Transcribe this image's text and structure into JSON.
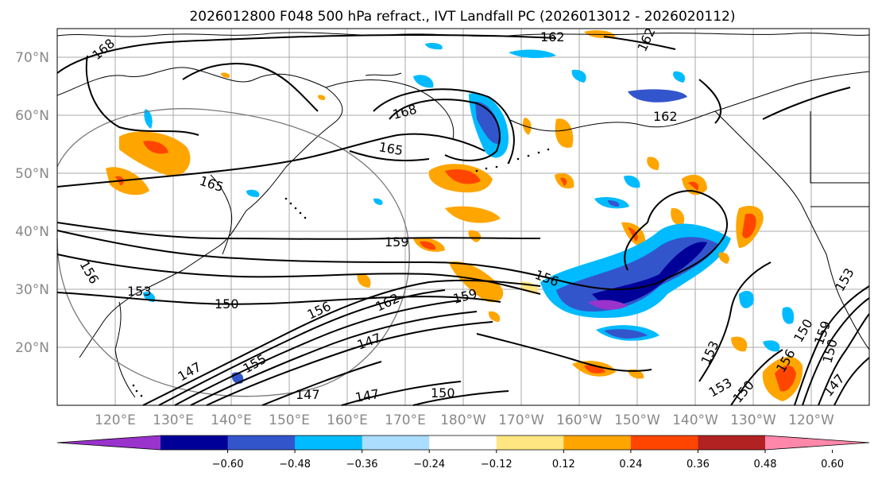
{
  "title": "2026012800 F048 500 hPa refract., IVT Landfall PC (2026013012 - 2026020112)",
  "map": {
    "lat_labels": [
      "70°N",
      "60°N",
      "50°N",
      "40°N",
      "30°N",
      "20°N"
    ],
    "lon_labels": [
      "120°E",
      "130°E",
      "140°E",
      "150°E",
      "160°E",
      "170°E",
      "180°W",
      "170°W",
      "160°W",
      "150°W",
      "140°W",
      "130°W",
      "120°W"
    ],
    "contour_labels": [
      "168",
      "162",
      "162",
      "168",
      "165",
      "165",
      "162",
      "159",
      "156",
      "156",
      "159",
      "153",
      "150",
      "156",
      "162",
      "147",
      "147",
      "155",
      "147",
      "147",
      "150",
      "153",
      "153",
      "150",
      "150",
      "156",
      "153",
      "159",
      "147",
      "150"
    ]
  },
  "colorbar": {
    "colors": [
      "#9933cc",
      "#000099",
      "#3355cc",
      "#00bbff",
      "#aaddff",
      "#ffffff",
      "#ffe680",
      "#ffa500",
      "#ff4500",
      "#b22222",
      "#ff88aa"
    ],
    "tick_labels": [
      "−0.60",
      "−0.48",
      "−0.36",
      "−0.24",
      "−0.12",
      "0.12",
      "0.24",
      "0.36",
      "0.48",
      "0.60"
    ]
  }
}
